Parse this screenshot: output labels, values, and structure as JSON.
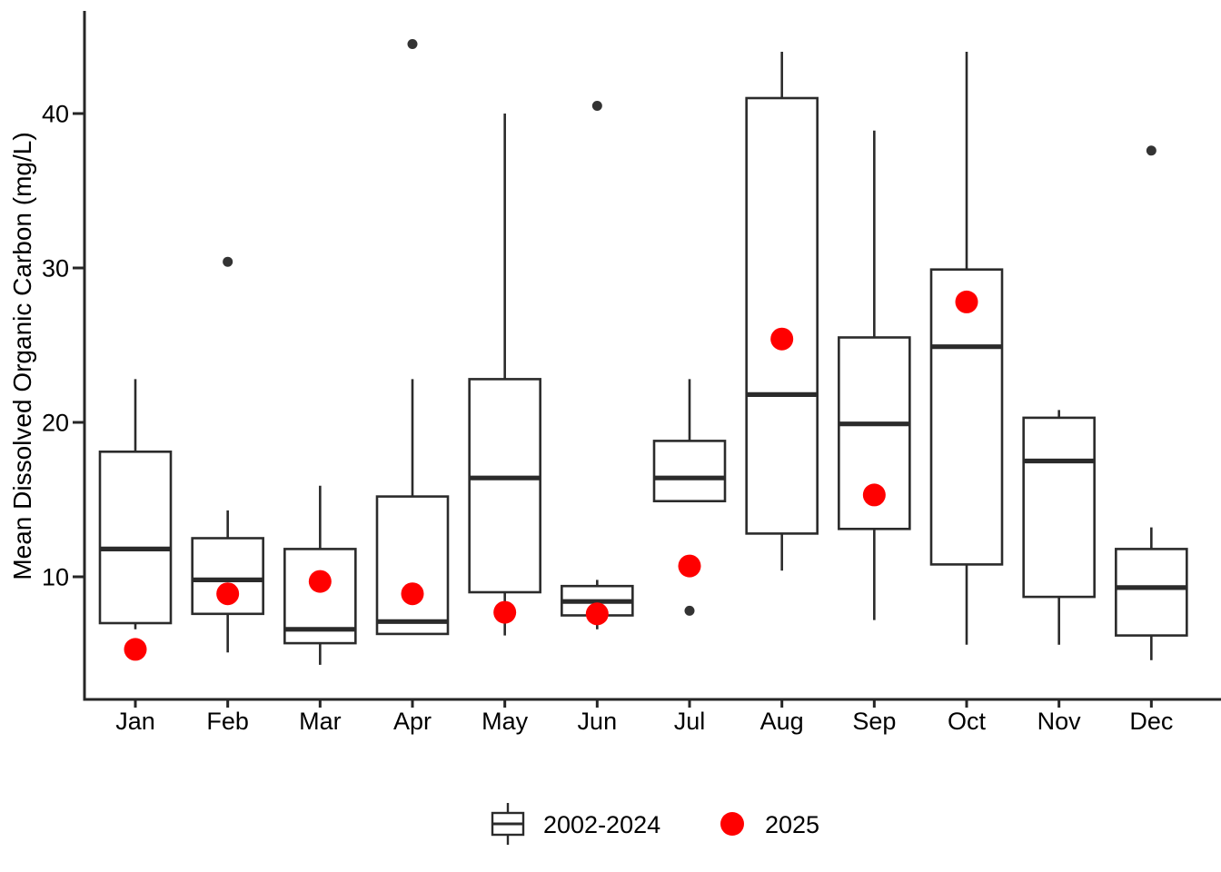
{
  "chart_data": {
    "type": "boxplot",
    "title": "",
    "xlabel": "",
    "ylabel": "Mean Dissolved Organic Carbon (mg/L)",
    "yticks": [
      10,
      20,
      30,
      40
    ],
    "ylim": [
      2,
      46.5
    ],
    "grid": "off",
    "legend_position": "bottom",
    "categories": [
      "Jan",
      "Feb",
      "Mar",
      "Apr",
      "May",
      "Jun",
      "Jul",
      "Aug",
      "Sep",
      "Oct",
      "Nov",
      "Dec"
    ],
    "series": [
      {
        "name": "2002-2024",
        "type": "box",
        "color": "#2B2B2B",
        "boxes": [
          {
            "category": "Jan",
            "whisker_low": 6.6,
            "q1": 7.0,
            "median": 11.8,
            "q3": 18.1,
            "whisker_high": 22.8,
            "outliers": []
          },
          {
            "category": "Feb",
            "whisker_low": 5.1,
            "q1": 7.6,
            "median": 9.8,
            "q3": 12.5,
            "whisker_high": 14.3,
            "outliers": [
              30.4
            ]
          },
          {
            "category": "Mar",
            "whisker_low": 4.3,
            "q1": 5.7,
            "median": 6.6,
            "q3": 11.8,
            "whisker_high": 15.9,
            "outliers": []
          },
          {
            "category": "Apr",
            "whisker_low": 6.3,
            "q1": 6.3,
            "median": 7.1,
            "q3": 15.2,
            "whisker_high": 22.8,
            "outliers": [
              44.5
            ]
          },
          {
            "category": "May",
            "whisker_low": 6.2,
            "q1": 9.0,
            "median": 16.4,
            "q3": 22.8,
            "whisker_high": 40.0,
            "outliers": []
          },
          {
            "category": "Jun",
            "whisker_low": 6.6,
            "q1": 7.5,
            "median": 8.4,
            "q3": 9.4,
            "whisker_high": 9.8,
            "outliers": [
              40.5
            ]
          },
          {
            "category": "Jul",
            "whisker_low": 14.9,
            "q1": 14.9,
            "median": 16.4,
            "q3": 18.8,
            "whisker_high": 22.8,
            "outliers": [
              7.8
            ]
          },
          {
            "category": "Aug",
            "whisker_low": 10.4,
            "q1": 12.8,
            "median": 21.8,
            "q3": 41.0,
            "whisker_high": 44.0,
            "outliers": []
          },
          {
            "category": "Sep",
            "whisker_low": 7.2,
            "q1": 13.1,
            "median": 19.9,
            "q3": 25.5,
            "whisker_high": 38.9,
            "outliers": []
          },
          {
            "category": "Oct",
            "whisker_low": 5.6,
            "q1": 10.8,
            "median": 24.9,
            "q3": 29.9,
            "whisker_high": 44.0,
            "outliers": []
          },
          {
            "category": "Nov",
            "whisker_low": 5.6,
            "q1": 8.7,
            "median": 17.5,
            "q3": 20.3,
            "whisker_high": 20.8,
            "outliers": []
          },
          {
            "category": "Dec",
            "whisker_low": 4.6,
            "q1": 6.2,
            "median": 9.3,
            "q3": 11.8,
            "whisker_high": 13.2,
            "outliers": [
              37.6
            ]
          }
        ]
      },
      {
        "name": "2025",
        "type": "point",
        "color": "#FF0000",
        "values": [
          5.3,
          8.9,
          9.7,
          8.9,
          7.7,
          7.6,
          10.7,
          25.4,
          15.3,
          27.8,
          null,
          null
        ]
      }
    ],
    "outlier_color": "#333333",
    "box_fill": "#FFFFFF"
  }
}
